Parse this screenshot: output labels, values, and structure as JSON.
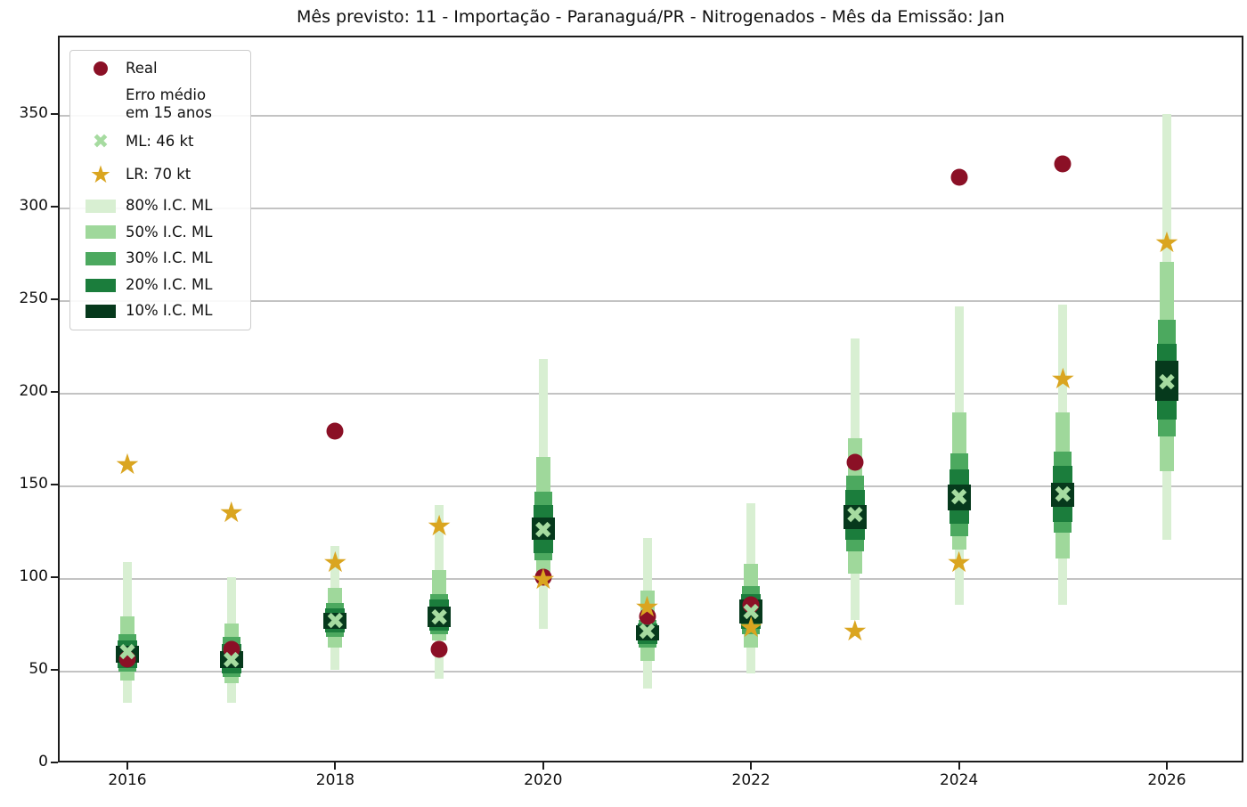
{
  "title": "Mês previsto: 11 - Importação - Paranaguá/PR - Nitrogenados - Mês da Emissão: Jan",
  "legend": {
    "items": [
      {
        "label": [
          "Real"
        ],
        "marker": "dot",
        "color": "#8b1026"
      },
      {
        "label": [
          "Erro médio",
          "em 15 anos"
        ],
        "marker": "none",
        "color": ""
      },
      {
        "label": [
          "ML: 46 kt"
        ],
        "marker": "x",
        "color": "#a6dba0"
      },
      {
        "label": [
          "LR: 70 kt"
        ],
        "marker": "star",
        "color": "#daa520"
      },
      {
        "label": [
          "80% I.C. ML"
        ],
        "marker": "patch",
        "color": "#d8efd2"
      },
      {
        "label": [
          "50% I.C. ML"
        ],
        "marker": "patch",
        "color": "#9fd89b"
      },
      {
        "label": [
          "30% I.C. ML"
        ],
        "marker": "patch",
        "color": "#4ca95f"
      },
      {
        "label": [
          "20% I.C. ML"
        ],
        "marker": "patch",
        "color": "#1b7d3c"
      },
      {
        "label": [
          "10% I.C. ML"
        ],
        "marker": "patch",
        "color": "#06391c"
      }
    ]
  },
  "chart_data": {
    "type": "fan-chart: nested confidence-interval bars with scatter markers",
    "title": "Mês previsto: 11 - Importação - Paranaguá/PR - Nitrogenados - Mês da Emissão: Jan",
    "units": "kt",
    "x": [
      2016,
      2017,
      2018,
      2019,
      2020,
      2021,
      2022,
      2023,
      2024,
      2025,
      2026
    ],
    "xticks": [
      2016,
      2018,
      2020,
      2022,
      2024,
      2026
    ],
    "yticks": [
      0,
      50,
      100,
      150,
      200,
      250,
      300,
      350
    ],
    "ylim": [
      0,
      392
    ],
    "grid": "horizontal",
    "legend_position": "upper left",
    "series": {
      "real": [
        56,
        61,
        179,
        61,
        100,
        79,
        85,
        162,
        316,
        323,
        null
      ],
      "ml": [
        59,
        55,
        76,
        78,
        125,
        70,
        81,
        133,
        143,
        144,
        205
      ],
      "lr": [
        161,
        135,
        108,
        128,
        99,
        84,
        73,
        71,
        108,
        207,
        281
      ],
      "ci80": [
        [
          32,
          108
        ],
        [
          32,
          100
        ],
        [
          50,
          117
        ],
        [
          45,
          139
        ],
        [
          72,
          218
        ],
        [
          40,
          121
        ],
        [
          48,
          140
        ],
        [
          77,
          229
        ],
        [
          85,
          246
        ],
        [
          85,
          247
        ],
        [
          120,
          350
        ]
      ],
      "ci50": [
        [
          44,
          79
        ],
        [
          43,
          75
        ],
        [
          62,
          94
        ],
        [
          66,
          104
        ],
        [
          103,
          165
        ],
        [
          55,
          93
        ],
        [
          62,
          107
        ],
        [
          102,
          175
        ],
        [
          115,
          189
        ],
        [
          110,
          189
        ],
        [
          157,
          270
        ]
      ],
      "ci30": [
        [
          49,
          69
        ],
        [
          46,
          68
        ],
        [
          68,
          86
        ],
        [
          69,
          91
        ],
        [
          109,
          146
        ],
        [
          62,
          77
        ],
        [
          69,
          95
        ],
        [
          114,
          155
        ],
        [
          122,
          167
        ],
        [
          124,
          168
        ],
        [
          176,
          239
        ]
      ],
      "ci20": [
        [
          51,
          66
        ],
        [
          48,
          64
        ],
        [
          70,
          83
        ],
        [
          71,
          88
        ],
        [
          113,
          139
        ],
        [
          64,
          75
        ],
        [
          72,
          91
        ],
        [
          120,
          147
        ],
        [
          129,
          158
        ],
        [
          130,
          160
        ],
        [
          185,
          226
        ]
      ],
      "ci10": [
        [
          54,
          63
        ],
        [
          51,
          60
        ],
        [
          72,
          81
        ],
        [
          73,
          84
        ],
        [
          120,
          132
        ],
        [
          66,
          74
        ],
        [
          75,
          88
        ],
        [
          126,
          139
        ],
        [
          136,
          150
        ],
        [
          138,
          151
        ],
        [
          195,
          217
        ]
      ]
    },
    "colors": {
      "real": "#8b1026",
      "ml": "#a6dba0",
      "lr": "#daa520",
      "ci80": "#d8efd2",
      "ci50": "#9fd89b",
      "ci30": "#4ca95f",
      "ci20": "#1b7d3c",
      "ci10": "#06391c",
      "grid": "#c3c3c3",
      "frame": "#1c1c1c"
    }
  }
}
